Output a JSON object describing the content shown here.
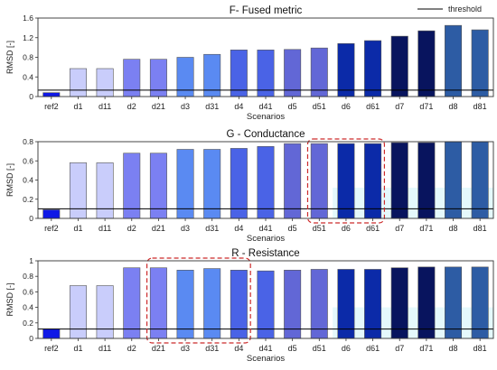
{
  "legend": {
    "label": "threshold"
  },
  "colors": {
    "d_light": "#c9cdfb",
    "d1": "#a3a8f8",
    "d2": "#7b80f2",
    "d3": "#5a8af2",
    "d4": "#4a63e6",
    "d5": "#6267d6",
    "d6": "#0b2aa8",
    "d7": "#08145e",
    "d8": "#2d5ca4",
    "ref": "#0f18e6",
    "threshold": "#000000",
    "highlight_box": "#cc2a2a",
    "shade": "#dff7fb"
  },
  "chart_data": [
    {
      "type": "bar",
      "title": "F- Fused metric",
      "xlabel": "Scenarios",
      "ylabel": "RMSD [-]",
      "categories": [
        "ref2",
        "d1",
        "d11",
        "d2",
        "d21",
        "d3",
        "d31",
        "d4",
        "d41",
        "d5",
        "d51",
        "d6",
        "d61",
        "d7",
        "d71",
        "d8",
        "d81"
      ],
      "values": [
        0.08,
        0.57,
        0.57,
        0.76,
        0.76,
        0.8,
        0.86,
        0.95,
        0.95,
        0.96,
        0.99,
        1.08,
        1.14,
        1.23,
        1.34,
        1.45,
        1.36
      ],
      "yticks": [
        0,
        0.4,
        0.8,
        1.2,
        1.6
      ],
      "ytick_labels": [
        "0",
        "0.4",
        "0.8",
        "1.2",
        "1.6"
      ],
      "ylim": [
        0,
        1.6
      ],
      "threshold": 0.13,
      "highlight": null,
      "shaded": false
    },
    {
      "type": "bar",
      "title": "G - Conductance",
      "xlabel": "Scenarios",
      "ylabel": "RMSD [-]",
      "categories": [
        "ref2",
        "d1",
        "d11",
        "d2",
        "d21",
        "d3",
        "d31",
        "d4",
        "d41",
        "d5",
        "d51",
        "d6",
        "d61",
        "d7",
        "d71",
        "d8",
        "d81"
      ],
      "values": [
        0.09,
        0.58,
        0.58,
        0.68,
        0.68,
        0.72,
        0.72,
        0.73,
        0.75,
        0.78,
        0.78,
        0.78,
        0.78,
        0.79,
        0.79,
        0.8,
        0.8
      ],
      "yticks": [
        0,
        0.2,
        0.4,
        0.6,
        0.8
      ],
      "ytick_labels": [
        "0",
        "0.2",
        "0.4",
        "0.6",
        "0.8"
      ],
      "ylim": [
        0,
        0.8
      ],
      "threshold": 0.1,
      "highlight": [
        "d51",
        "d61"
      ],
      "shaded": true
    },
    {
      "type": "bar",
      "title": "R - Resistance",
      "xlabel": "Scenarios",
      "ylabel": "RMSD [-]",
      "categories": [
        "ref2",
        "d1",
        "d11",
        "d2",
        "d21",
        "d3",
        "d31",
        "d4",
        "d41",
        "d5",
        "d51",
        "d6",
        "d61",
        "d7",
        "d71",
        "d8",
        "d81"
      ],
      "values": [
        0.12,
        0.68,
        0.68,
        0.91,
        0.91,
        0.88,
        0.9,
        0.88,
        0.87,
        0.88,
        0.89,
        0.89,
        0.89,
        0.91,
        0.92,
        0.92,
        0.92
      ],
      "yticks": [
        0,
        0.2,
        0.4,
        0.6,
        0.8,
        1
      ],
      "ytick_labels": [
        "0",
        "0.2",
        "0.4",
        "0.6",
        "0.8",
        "1"
      ],
      "ylim": [
        0,
        1
      ],
      "threshold": 0.12,
      "highlight": [
        "d21",
        "d4"
      ],
      "shaded": true
    }
  ]
}
